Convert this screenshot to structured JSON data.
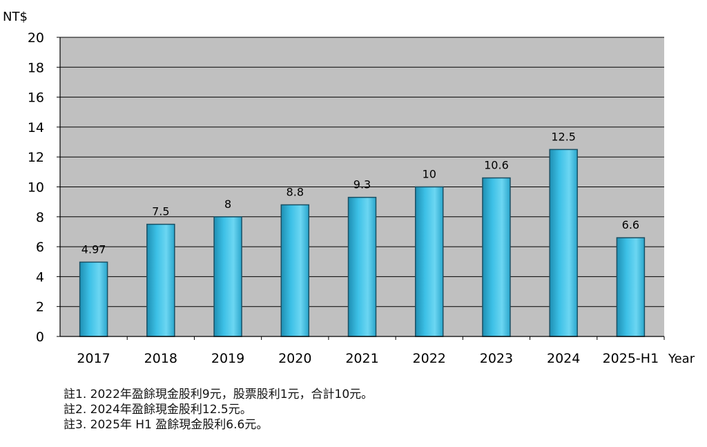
{
  "chart_data": {
    "type": "bar",
    "unit_label": "NT$",
    "xlabel": "Year",
    "categories": [
      "2017",
      "2018",
      "2019",
      "2020",
      "2021",
      "2022",
      "2023",
      "2024",
      "2025-H1"
    ],
    "values": [
      4.97,
      7.5,
      8,
      8.8,
      9.3,
      10,
      10.6,
      12.5,
      6.6
    ],
    "value_labels": [
      "4.97",
      "7.5",
      "8",
      "8.8",
      "9.3",
      "10",
      "10.6",
      "12.5",
      "6.6"
    ],
    "ylim": [
      0,
      20
    ],
    "yticks": [
      "0",
      "2",
      "4",
      "6",
      "8",
      "10",
      "12",
      "14",
      "16",
      "18",
      "20"
    ],
    "grid": true,
    "legend": "none",
    "colors": {
      "plot_background": "#c0c0c0",
      "bar_light": "#6cd6f2",
      "bar_mid": "#3cc0e6",
      "bar_dark": "#1f8fb3",
      "gridline": "#000000"
    }
  },
  "notes": [
    "註1. 2022年盈餘現金股利9元，股票股利1元，合計10元。",
    "註2. 2024年盈餘現金股利12.5元。",
    "註3. 2025年 H1 盈餘現金股利6.6元。"
  ]
}
